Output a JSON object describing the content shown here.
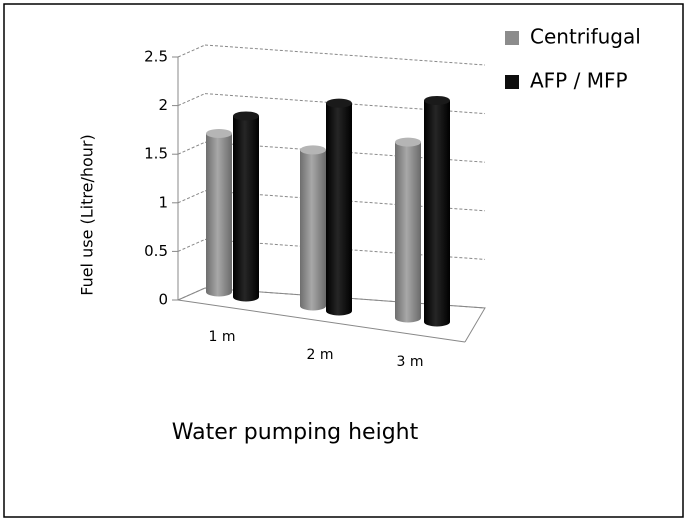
{
  "chart_data": {
    "type": "bar3d",
    "categories": [
      "1 m",
      "2 m",
      "3 m"
    ],
    "series": [
      {
        "name": "Centrifugal",
        "color": "#8c8c8c",
        "values": [
          1.6,
          1.5,
          1.65
        ]
      },
      {
        "name": "AFP / MFP",
        "color": "#0d0d0d",
        "values": [
          1.8,
          2.0,
          2.1
        ]
      }
    ],
    "ylim": [
      0,
      2.5
    ],
    "yticks": [
      0,
      0.5,
      1,
      1.5,
      2,
      2.5
    ],
    "y_label": "Fuel use (Litre/hour)",
    "x_label": "Water pumping height",
    "grid": true,
    "legend": "top-right"
  }
}
